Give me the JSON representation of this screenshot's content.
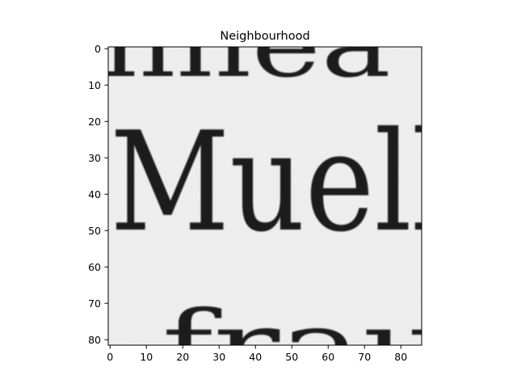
{
  "title": "Neighbourhood",
  "x_ticks": [
    "0",
    "10",
    "20",
    "30",
    "40",
    "50",
    "60",
    "70",
    "80"
  ],
  "y_ticks": [
    "0",
    "10",
    "20",
    "30",
    "40",
    "50",
    "60",
    "70",
    "80"
  ],
  "image": {
    "colormap": "gray",
    "background_color": "#efefef",
    "ink_color": "#1f1f1f",
    "words": {
      "top": "nnea",
      "middle": "Muell",
      "bottom": "frau"
    }
  }
}
